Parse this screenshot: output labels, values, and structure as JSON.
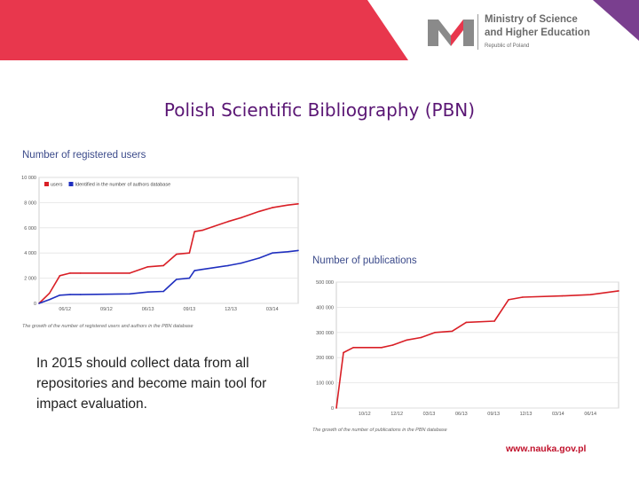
{
  "logo": {
    "line1": "Ministry of Science",
    "line2": "and Higher Education",
    "line3": "Republic of Poland"
  },
  "colors": {
    "banner_red": "#e8374d",
    "banner_purple": "#7a3f8f",
    "title": "#5a1674",
    "series_red": "#d91f26",
    "series_blue": "#1f2fbf",
    "url": "#c0102a"
  },
  "title": "Polish Scientific Bibliography (PBN)",
  "body_text": "In 2015 should collect data from all repositories and become main tool for impact evaluation.",
  "url": "www.nauka.gov.pl",
  "chart_data": [
    {
      "type": "line",
      "title": "Number of registered users",
      "caption": "The growth of the number of registered users and authors in the PBN database",
      "legend": [
        "users",
        "Identified in the number of authors database"
      ],
      "y_ticks": [
        "10 000",
        "8 000",
        "6 000",
        "4 000",
        "2 000",
        "0"
      ],
      "x_ticks": [
        "06/12",
        "09/12",
        "06/13",
        "09/13",
        "12/13",
        "03/14"
      ],
      "ylim": [
        0,
        10000
      ],
      "series": [
        {
          "name": "users",
          "color": "#d91f26",
          "x": [
            0,
            0.04,
            0.08,
            0.12,
            0.16,
            0.35,
            0.42,
            0.48,
            0.53,
            0.58,
            0.6,
            0.63,
            0.73,
            0.78,
            0.85,
            0.9,
            0.96,
            1.0
          ],
          "values": [
            0,
            800,
            2200,
            2400,
            2400,
            2400,
            2900,
            3000,
            3900,
            4000,
            5700,
            5800,
            6500,
            6800,
            7300,
            7600,
            7800,
            7900
          ]
        },
        {
          "name": "Identified in the number of authors database",
          "color": "#1f2fbf",
          "x": [
            0,
            0.04,
            0.08,
            0.12,
            0.16,
            0.35,
            0.42,
            0.48,
            0.53,
            0.58,
            0.6,
            0.63,
            0.73,
            0.78,
            0.85,
            0.9,
            0.96,
            1.0
          ],
          "values": [
            0,
            300,
            650,
            700,
            700,
            750,
            900,
            950,
            1900,
            2000,
            2600,
            2700,
            3000,
            3200,
            3600,
            4000,
            4100,
            4200
          ]
        }
      ]
    },
    {
      "type": "line",
      "title": "Number of publications",
      "caption": "The growth of the number of publications in the PBN database",
      "y_ticks": [
        "500 000",
        "400 000",
        "300 000",
        "200 000",
        "100 000",
        "0"
      ],
      "x_ticks": [
        "10/12",
        "12/12",
        "03/13",
        "06/13",
        "09/13",
        "12/13",
        "03/14",
        "06/14"
      ],
      "ylim": [
        0,
        500000
      ],
      "series": [
        {
          "name": "",
          "color": "#d91f26",
          "x": [
            0,
            0.025,
            0.06,
            0.16,
            0.2,
            0.25,
            0.3,
            0.35,
            0.41,
            0.46,
            0.56,
            0.61,
            0.66,
            0.8,
            0.9,
            1.0
          ],
          "values": [
            0,
            220000,
            240000,
            240000,
            250000,
            270000,
            280000,
            300000,
            305000,
            340000,
            345000,
            430000,
            440000,
            445000,
            450000,
            465000
          ]
        }
      ]
    }
  ]
}
